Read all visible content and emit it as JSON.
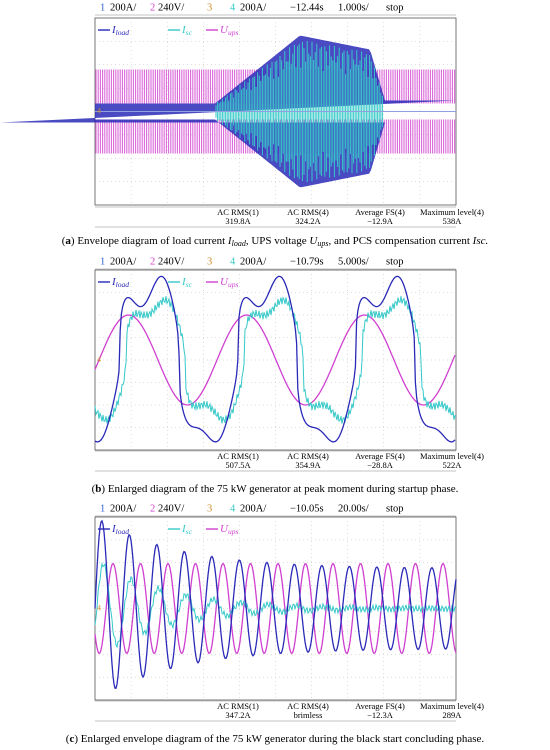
{
  "panels": [
    {
      "header": {
        "ch1": "1",
        "scale1": "200A/",
        "ch2": "2",
        "scale2": "240V/",
        "ch3": "3",
        "ch4": "4",
        "scale4": "200A/",
        "delay": "−12.44s",
        "timebase": "1.000s/",
        "status": "stop"
      },
      "legend": [
        {
          "symbol": "I",
          "sub": "load"
        },
        {
          "symbol": "I",
          "sub": "sc"
        },
        {
          "symbol": "U",
          "sub": "ups"
        }
      ],
      "measurements": [
        {
          "label": "AC RMS(1)",
          "value": "319.8A"
        },
        {
          "label": "AC RMS(4)",
          "value": "324.2A"
        },
        {
          "label": "Average FS(4)",
          "value": "−12.9A"
        },
        {
          "label": "Maximum level(4)",
          "value": "538A"
        }
      ],
      "caption": [
        {
          "text": "(",
          "style": "normal"
        },
        {
          "text": "a",
          "style": "bold"
        },
        {
          "text": ") Envelope diagram of load current ",
          "style": "normal"
        },
        {
          "text": "I",
          "style": "italic"
        },
        {
          "text": "load",
          "style": "sub"
        },
        {
          "text": ", UPS voltage ",
          "style": "normal"
        },
        {
          "text": "U",
          "style": "italic"
        },
        {
          "text": "ups",
          "style": "sub"
        },
        {
          "text": ", and PCS compensation current ",
          "style": "normal"
        },
        {
          "text": "Isc.",
          "style": "italic"
        }
      ]
    },
    {
      "header": {
        "ch1": "1",
        "scale1": "200A/",
        "ch2": "2",
        "scale2": "240V/",
        "ch3": "3",
        "ch4": "4",
        "scale4": "200A/",
        "delay": "−10.79s",
        "timebase": "5.000s/",
        "status": "stop"
      },
      "legend": [
        {
          "symbol": "I",
          "sub": "load"
        },
        {
          "symbol": "I",
          "sub": "sc"
        },
        {
          "symbol": "U",
          "sub": "ups"
        }
      ],
      "measurements": [
        {
          "label": "AC RMS(1)",
          "value": "507.5A"
        },
        {
          "label": "AC RMS(4)",
          "value": "354.9A"
        },
        {
          "label": "Average FS(4)",
          "value": "−28.8A"
        },
        {
          "label": "Maximum level(4)",
          "value": "522A"
        }
      ],
      "caption": [
        {
          "text": "(",
          "style": "normal"
        },
        {
          "text": "b",
          "style": "bold"
        },
        {
          "text": ") Enlarged diagram of the 75 kW generator at peak moment during startup phase.",
          "style": "normal"
        }
      ]
    },
    {
      "header": {
        "ch1": "1",
        "scale1": "200A/",
        "ch2": "2",
        "scale2": "240V/",
        "ch3": "3",
        "ch4": "4",
        "scale4": "200A/",
        "delay": "−10.05s",
        "timebase": "20.00s/",
        "status": "stop"
      },
      "legend": [
        {
          "symbol": "I",
          "sub": "load"
        },
        {
          "symbol": "I",
          "sub": "sc"
        },
        {
          "symbol": "U",
          "sub": "ups"
        }
      ],
      "measurements": [
        {
          "label": "AC RMS(1)",
          "value": "347.2A"
        },
        {
          "label": "AC RMS(4)",
          "value": "brimless"
        },
        {
          "label": "Average FS(4)",
          "value": "−12.3A"
        },
        {
          "label": "Maximum level(4)",
          "value": "289A"
        }
      ],
      "caption": [
        {
          "text": "(",
          "style": "normal"
        },
        {
          "text": "c",
          "style": "bold"
        },
        {
          "text": ") Enlarged envelope diagram of the 75 kW generator during the black start concluding phase.",
          "style": "normal"
        }
      ]
    }
  ]
}
